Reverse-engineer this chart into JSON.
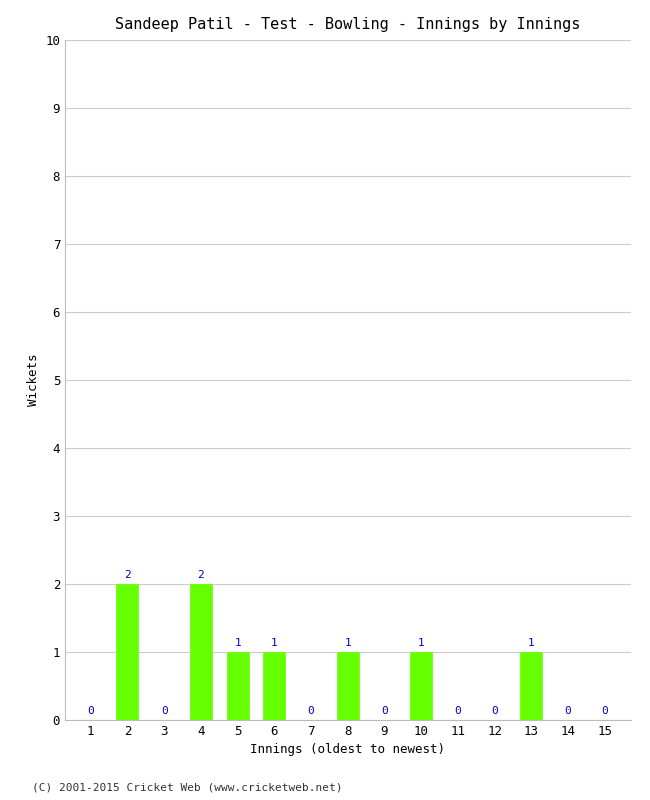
{
  "title": "Sandeep Patil - Test - Bowling - Innings by Innings",
  "xlabel": "Innings (oldest to newest)",
  "ylabel": "Wickets",
  "innings": [
    1,
    2,
    3,
    4,
    5,
    6,
    7,
    8,
    9,
    10,
    11,
    12,
    13,
    14,
    15
  ],
  "wickets": [
    0,
    2,
    0,
    2,
    1,
    1,
    0,
    1,
    0,
    1,
    0,
    0,
    1,
    0,
    0
  ],
  "bar_color": "#66ff00",
  "bar_edge_color": "#66ff00",
  "label_color": "#0000cc",
  "ylim": [
    0,
    10
  ],
  "yticks": [
    0,
    1,
    2,
    3,
    4,
    5,
    6,
    7,
    8,
    9,
    10
  ],
  "xticks": [
    1,
    2,
    3,
    4,
    5,
    6,
    7,
    8,
    9,
    10,
    11,
    12,
    13,
    14,
    15
  ],
  "title_fontsize": 11,
  "axis_label_fontsize": 9,
  "tick_label_fontsize": 9,
  "bar_label_fontsize": 8,
  "footer": "(C) 2001-2015 Cricket Web (www.cricketweb.net)",
  "footer_fontsize": 8,
  "background_color": "#ffffff",
  "plot_background_color": "#ffffff",
  "grid_color": "#cccccc"
}
